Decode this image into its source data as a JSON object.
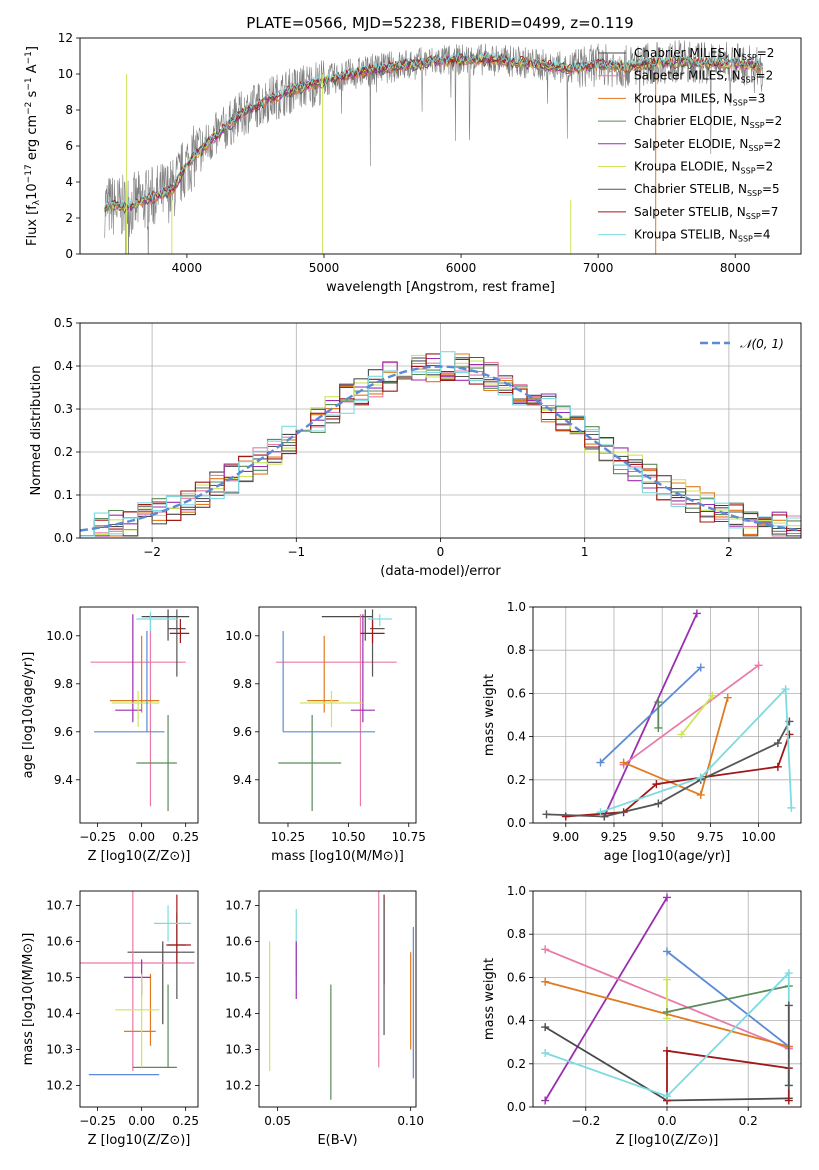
{
  "page": {
    "title": "PLATE=0566, MJD=52238, FIBERID=0499, z=0.119"
  },
  "models": [
    {
      "name": "Chabrier MILES, N$_{SSP}$=2",
      "label": "Chabrier MILES, N",
      "sub": "SSP",
      "n": "=2",
      "color": "#4a4a4a"
    },
    {
      "name": "Salpeter MILES, N$_{SSP}$=2",
      "label": "Salpeter MILES, N",
      "sub": "SSP",
      "n": "=2",
      "color": "#e87aa8"
    },
    {
      "name": "Kroupa MILES, N$_{SSP}$=3",
      "label": "Kroupa MILES, N",
      "sub": "SSP",
      "n": "=3",
      "color": "#e07a1f"
    },
    {
      "name": "Chabrier ELODIE, N$_{SSP}$=2",
      "label": "Chabrier ELODIE, N",
      "sub": "SSP",
      "n": "=2",
      "color": "#5a8a5a"
    },
    {
      "name": "Salpeter ELODIE, N$_{SSP}$=2",
      "label": "Salpeter ELODIE, N",
      "sub": "SSP",
      "n": "=2",
      "color": "#9a2fb0"
    },
    {
      "name": "Kroupa ELODIE, N$_{SSP}$=2",
      "label": "Kroupa ELODIE, N",
      "sub": "SSP",
      "n": "=2",
      "color": "#cde65a"
    },
    {
      "name": "Chabrier STELIB, N$_{SSP}$=5",
      "label": "Chabrier STELIB, N",
      "sub": "SSP",
      "n": "=5",
      "color": "#555555"
    },
    {
      "name": "Salpeter STELIB, N$_{SSP}$=7",
      "label": "Salpeter STELIB, N",
      "sub": "SSP",
      "n": "=7",
      "color": "#a01818"
    },
    {
      "name": "Kroupa STELIB, N$_{SSP}$=4",
      "label": "Kroupa STELIB, N",
      "sub": "SSP",
      "n": "=4",
      "color": "#7ddbe0"
    }
  ],
  "chart_data": [
    {
      "id": "spectrum",
      "type": "line",
      "title": "PLATE=0566, MJD=52238, FIBERID=0499, z=0.119",
      "xlabel": "wavelength [Angstrom, rest frame]",
      "ylabel": "Flux [f_λ 10^-17 erg cm^-2 s^-1 A^-1]",
      "xlim": [
        3220,
        8480
      ],
      "ylim": [
        0,
        12
      ],
      "xticks": [
        4000,
        5000,
        6000,
        7000,
        8000
      ],
      "yticks": [
        0,
        2,
        4,
        6,
        8,
        10,
        12
      ],
      "data_color": "#808080",
      "continuum": {
        "x": [
          3400,
          3550,
          3700,
          3900,
          4000,
          4200,
          4400,
          4600,
          4800,
          5000,
          5200,
          5400,
          5600,
          5800,
          6000,
          6200,
          6400,
          6600,
          6800,
          7000,
          7200,
          7400,
          7600,
          7800,
          8000,
          8200
        ],
        "y": [
          2.7,
          2.6,
          3.0,
          3.6,
          5.0,
          6.5,
          7.8,
          8.6,
          9.2,
          9.6,
          10.0,
          10.3,
          10.5,
          10.7,
          10.8,
          10.8,
          10.7,
          10.5,
          10.3,
          10.5,
          10.4,
          10.6,
          10.7,
          10.6,
          10.6,
          10.4
        ]
      },
      "legend": "upper-right"
    },
    {
      "id": "residuals",
      "type": "histogram",
      "xlabel": "(data-model)/error",
      "ylabel": "Normed distribution",
      "xlim": [
        -2.5,
        2.5
      ],
      "ylim": [
        0,
        0.5
      ],
      "xticks": [
        -2,
        -1,
        0,
        1,
        2
      ],
      "yticks": [
        0.0,
        0.1,
        0.2,
        0.3,
        0.4,
        0.5
      ],
      "normal_curve_label": "𝒩(0, 1)",
      "normal_color": "#5b8bd6",
      "grid": true,
      "legend": "upper-right"
    },
    {
      "id": "age_vs_Z",
      "type": "errorbar",
      "xlabel": "Z [log10(Z/Z⊙)]",
      "ylabel": "age [log10(age/yr)]",
      "xlim": [
        -0.35,
        0.32
      ],
      "ylim": [
        9.22,
        10.12
      ],
      "xticks": [
        -0.25,
        0.0,
        0.25
      ],
      "xtick_labels": [
        "−0.25",
        "0.00",
        "0.25"
      ],
      "yticks": [
        9.4,
        9.6,
        9.8,
        10.0
      ],
      "points": [
        {
          "x": 0.15,
          "y": 10.08,
          "xerr": [
            0.15,
            0.12
          ],
          "yerr": [
            0.1,
            0.03
          ],
          "c": "#4a4a4a"
        },
        {
          "x": 0.05,
          "y": 9.89,
          "xerr": [
            0.34,
            0.2
          ],
          "yerr": [
            0.6,
            0.2
          ],
          "c": "#e87aa8"
        },
        {
          "x": 0.0,
          "y": 9.73,
          "xerr": [
            0.18,
            0.1
          ],
          "yerr": [
            0.05,
            0.27
          ],
          "c": "#e07a1f"
        },
        {
          "x": 0.15,
          "y": 9.47,
          "xerr": [
            0.18,
            0.05
          ],
          "yerr": [
            0.2,
            0.2
          ],
          "c": "#5a8a5a"
        },
        {
          "x": -0.05,
          "y": 9.69,
          "xerr": [
            0.1,
            0.05
          ],
          "yerr": [
            0.05,
            0.4
          ],
          "c": "#9a2fb0"
        },
        {
          "x": -0.02,
          "y": 9.72,
          "xerr": [
            0.15,
            0.12
          ],
          "yerr": [
            0.1,
            0.05
          ],
          "c": "#cde65a"
        },
        {
          "x": 0.2,
          "y": 10.03,
          "xerr": [
            0.05,
            0.05
          ],
          "yerr": [
            0.2,
            0.08
          ],
          "c": "#555555"
        },
        {
          "x": 0.22,
          "y": 10.01,
          "xerr": [
            0.06,
            0.05
          ],
          "yerr": [
            0.04,
            0.06
          ],
          "c": "#a01818"
        },
        {
          "x": 0.05,
          "y": 10.07,
          "xerr": [
            0.08,
            0.15
          ],
          "yerr": [
            0.05,
            0.03
          ],
          "c": "#7ddbe0"
        },
        {
          "x": 0.03,
          "y": 9.6,
          "xerr": [
            0.3,
            0.1
          ],
          "yerr": [
            0.0,
            0.42
          ],
          "c": "#5b8bd6"
        }
      ]
    },
    {
      "id": "age_vs_mass",
      "type": "errorbar",
      "xlabel": "mass [log10(M/M⊙)]",
      "ylabel": "",
      "xlim": [
        10.13,
        10.78
      ],
      "ylim": [
        9.22,
        10.12
      ],
      "xticks": [
        10.25,
        10.5,
        10.75
      ],
      "xtick_labels": [
        "10.25",
        "10.50",
        "10.75"
      ],
      "yticks": [
        9.4,
        9.6,
        9.8,
        10.0
      ],
      "points": [
        {
          "x": 10.57,
          "y": 10.08,
          "xerr": [
            0.18,
            0.03
          ],
          "yerr": [
            0.1,
            0.03
          ],
          "c": "#4a4a4a"
        },
        {
          "x": 10.55,
          "y": 9.89,
          "xerr": [
            0.35,
            0.15
          ],
          "yerr": [
            0.6,
            0.2
          ],
          "c": "#e87aa8"
        },
        {
          "x": 10.4,
          "y": 9.73,
          "xerr": [
            0.07,
            0.06
          ],
          "yerr": [
            0.05,
            0.27
          ],
          "c": "#e07a1f"
        },
        {
          "x": 10.35,
          "y": 9.47,
          "xerr": [
            0.14,
            0.12
          ],
          "yerr": [
            0.2,
            0.2
          ],
          "c": "#5a8a5a"
        },
        {
          "x": 10.56,
          "y": 9.69,
          "xerr": [
            0.05,
            0.05
          ],
          "yerr": [
            0.05,
            0.4
          ],
          "c": "#9a2fb0"
        },
        {
          "x": 10.43,
          "y": 9.72,
          "xerr": [
            0.13,
            0.13
          ],
          "yerr": [
            0.1,
            0.05
          ],
          "c": "#cde65a"
        },
        {
          "x": 10.6,
          "y": 10.03,
          "xerr": [
            0.01,
            0.05
          ],
          "yerr": [
            0.2,
            0.08
          ],
          "c": "#555555"
        },
        {
          "x": 10.6,
          "y": 10.01,
          "xerr": [
            0.05,
            0.05
          ],
          "yerr": [
            0.04,
            0.06
          ],
          "c": "#a01818"
        },
        {
          "x": 10.63,
          "y": 10.07,
          "xerr": [
            0.05,
            0.05
          ],
          "yerr": [
            0.03,
            0.02
          ],
          "c": "#7ddbe0"
        },
        {
          "x": 10.23,
          "y": 9.6,
          "xerr": [
            0.0,
            0.38
          ],
          "yerr": [
            0.0,
            0.42
          ],
          "c": "#5b8bd6"
        }
      ]
    },
    {
      "id": "weight_vs_age",
      "type": "line",
      "xlabel": "age [log10(age/yr)]",
      "ylabel": "mass weight",
      "xlim": [
        8.83,
        10.22
      ],
      "ylim": [
        0,
        1
      ],
      "xticks": [
        9.0,
        9.25,
        9.5,
        9.75,
        10.0
      ],
      "xtick_labels": [
        "9.00",
        "9.25",
        "9.50",
        "9.75",
        "10.00"
      ],
      "yticks": [
        0.0,
        0.2,
        0.4,
        0.6,
        0.8,
        1.0
      ],
      "grid": true,
      "series": [
        {
          "c": "#9a2fb0",
          "x": [
            9.2,
            9.68
          ],
          "y": [
            0.03,
            0.97
          ]
        },
        {
          "c": "#5b8bd6",
          "x": [
            9.18,
            9.7
          ],
          "y": [
            0.28,
            0.72
          ]
        },
        {
          "c": "#e87aa8",
          "x": [
            9.3,
            10.0
          ],
          "y": [
            0.27,
            0.73
          ]
        },
        {
          "c": "#cde65a",
          "x": [
            9.6,
            9.76
          ],
          "y": [
            0.41,
            0.59
          ]
        },
        {
          "c": "#5a8a5a",
          "x": [
            9.48,
            9.48
          ],
          "y": [
            0.44,
            0.56
          ]
        },
        {
          "c": "#e07a1f",
          "x": [
            9.3,
            9.7,
            9.84
          ],
          "y": [
            0.28,
            0.13,
            0.58
          ]
        },
        {
          "c": "#a01818",
          "x": [
            9.0,
            9.3,
            9.47,
            9.7,
            10.1,
            10.16
          ],
          "y": [
            0.03,
            0.05,
            0.18,
            0.21,
            0.26,
            0.41
          ]
        },
        {
          "c": "#555555",
          "x": [
            8.9,
            9.2,
            9.48,
            9.7,
            10.1,
            10.16
          ],
          "y": [
            0.04,
            0.03,
            0.09,
            0.2,
            0.37,
            0.47
          ]
        },
        {
          "c": "#7ddbe0",
          "x": [
            9.18,
            9.7,
            10.14,
            10.17
          ],
          "y": [
            0.05,
            0.21,
            0.62,
            0.07
          ]
        }
      ]
    },
    {
      "id": "mass_vs_Z",
      "type": "errorbar",
      "xlabel": "Z [log10(Z/Z⊙)]",
      "ylabel": "mass [log10(M/M⊙)]",
      "xlim": [
        -0.35,
        0.32
      ],
      "ylim": [
        10.14,
        10.74
      ],
      "xticks": [
        -0.25,
        0.0,
        0.25
      ],
      "xtick_labels": [
        "−0.25",
        "0.00",
        "0.25"
      ],
      "yticks": [
        10.2,
        10.3,
        10.4,
        10.5,
        10.6,
        10.7
      ],
      "points": [
        {
          "x": 0.12,
          "y": 10.57,
          "xerr": [
            0.2,
            0.18
          ],
          "yerr": [
            0.2,
            0.03
          ],
          "c": "#4a4a4a"
        },
        {
          "x": -0.05,
          "y": 10.54,
          "xerr": [
            0.3,
            0.35
          ],
          "yerr": [
            0.3,
            0.2
          ],
          "c": "#e87aa8"
        },
        {
          "x": 0.05,
          "y": 10.35,
          "xerr": [
            0.15,
            0.03
          ],
          "yerr": [
            0.04,
            0.16
          ],
          "c": "#e07a1f"
        },
        {
          "x": 0.15,
          "y": 10.25,
          "xerr": [
            0.2,
            0.05
          ],
          "yerr": [
            0.0,
            0.23
          ],
          "c": "#5a8a5a"
        },
        {
          "x": 0.0,
          "y": 10.5,
          "xerr": [
            0.1,
            0.05
          ],
          "yerr": [
            0.05,
            0.05
          ],
          "c": "#9a2fb0"
        },
        {
          "x": 0.0,
          "y": 10.41,
          "xerr": [
            0.15,
            0.1
          ],
          "yerr": [
            0.16,
            0.1
          ],
          "c": "#cde65a"
        },
        {
          "x": 0.2,
          "y": 10.59,
          "xerr": [
            0.05,
            0.05
          ],
          "yerr": [
            0.15,
            0.09
          ],
          "c": "#555555"
        },
        {
          "x": 0.2,
          "y": 10.59,
          "xerr": [
            0.06,
            0.08
          ],
          "yerr": [
            0.05,
            0.14
          ],
          "c": "#a01818"
        },
        {
          "x": 0.15,
          "y": 10.65,
          "xerr": [
            0.08,
            0.13
          ],
          "yerr": [
            0.05,
            0.05
          ],
          "c": "#7ddbe0"
        },
        {
          "x": 0.0,
          "y": 10.23,
          "xerr": [
            0.3,
            0.1
          ],
          "yerr": [
            0.0,
            0.0
          ],
          "c": "#5b8bd6"
        }
      ]
    },
    {
      "id": "mass_vs_ebv",
      "type": "errorbar",
      "xlabel": "E(B-V)",
      "ylabel": "",
      "xlim": [
        0.043,
        0.102
      ],
      "ylim": [
        10.14,
        10.74
      ],
      "xticks": [
        0.05,
        0.1
      ],
      "xtick_labels": [
        "0.05",
        "0.10"
      ],
      "yticks": [
        10.2,
        10.3,
        10.4,
        10.5,
        10.6,
        10.7
      ],
      "points": [
        {
          "x": 0.057,
          "y": 10.6,
          "yerr": [
            0.1,
            0.09
          ],
          "c": "#7ddbe0"
        },
        {
          "x": 0.057,
          "y": 10.5,
          "yerr": [
            0.06,
            0.1
          ],
          "c": "#9a2fb0"
        },
        {
          "x": 0.047,
          "y": 10.43,
          "yerr": [
            0.19,
            0.17
          ],
          "c": "#cde65a"
        },
        {
          "x": 0.07,
          "y": 10.33,
          "yerr": [
            0.17,
            0.15
          ],
          "c": "#5a8a5a"
        },
        {
          "x": 0.088,
          "y": 10.5,
          "yerr": [
            0.25,
            0.24
          ],
          "c": "#e87aa8"
        },
        {
          "x": 0.09,
          "y": 10.6,
          "yerr": [
            0.12,
            0.13
          ],
          "c": "#a01818"
        },
        {
          "x": 0.09,
          "y": 10.5,
          "yerr": [
            0.16,
            0.22
          ],
          "c": "#555555"
        },
        {
          "x": 0.1,
          "y": 10.45,
          "yerr": [
            0.15,
            0.12
          ],
          "c": "#e07a1f"
        },
        {
          "x": 0.101,
          "y": 10.3,
          "yerr": [
            0.08,
            0.34
          ],
          "c": "#5b8bd6"
        }
      ]
    },
    {
      "id": "weight_vs_Z",
      "type": "line",
      "xlabel": "Z [log10(Z/Z⊙)]",
      "ylabel": "mass weight",
      "xlim": [
        -0.33,
        0.33
      ],
      "ylim": [
        0,
        1
      ],
      "xticks": [
        -0.2,
        0.0,
        0.2
      ],
      "xtick_labels": [
        "−0.2",
        "0.0",
        "0.2"
      ],
      "yticks": [
        0.0,
        0.2,
        0.4,
        0.6,
        0.8,
        1.0
      ],
      "grid": true,
      "series": [
        {
          "c": "#9a2fb0",
          "x": [
            -0.3,
            0.0
          ],
          "y": [
            0.03,
            0.97
          ]
        },
        {
          "c": "#5b8bd6",
          "x": [
            0.0,
            0.3
          ],
          "y": [
            0.72,
            0.28
          ]
        },
        {
          "c": "#e87aa8",
          "x": [
            -0.3,
            0.3
          ],
          "y": [
            0.73,
            0.27
          ]
        },
        {
          "c": "#e07a1f",
          "x": [
            -0.3,
            0.3
          ],
          "y": [
            0.58,
            0.28
          ]
        },
        {
          "c": "#cde65a",
          "x": [
            0.0,
            0.0
          ],
          "y": [
            0.41,
            0.59
          ]
        },
        {
          "c": "#5a8a5a",
          "x": [
            0.0,
            0.3
          ],
          "y": [
            0.44,
            0.56
          ]
        },
        {
          "c": "#4a4a4a",
          "x": [
            -0.3,
            0.0,
            0.3
          ],
          "y": [
            0.37,
            0.03,
            0.04
          ]
        },
        {
          "c": "#a01818",
          "x": [
            0.0,
            0.0,
            0.3,
            0.3
          ],
          "y": [
            0.03,
            0.26,
            0.18,
            0.03
          ]
        },
        {
          "c": "#7ddbe0",
          "x": [
            -0.3,
            0.0,
            0.3,
            0.3
          ],
          "y": [
            0.25,
            0.05,
            0.62,
            0.1
          ]
        },
        {
          "c": "#555555",
          "x": [
            0.3,
            0.3
          ],
          "y": [
            0.47,
            0.1
          ]
        }
      ]
    }
  ]
}
